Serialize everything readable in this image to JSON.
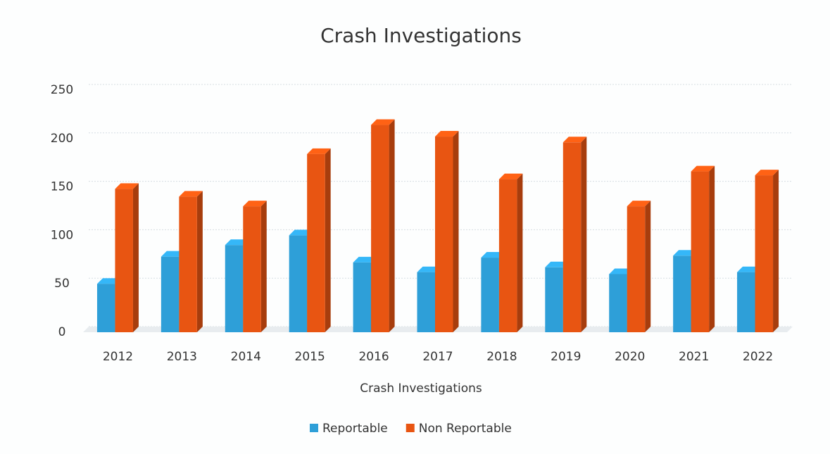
{
  "chart_data": {
    "type": "bar3d",
    "title": "Crash Investigations",
    "x_label": "Crash Investigations",
    "categories": [
      "2012",
      "2013",
      "2014",
      "2015",
      "2016",
      "2017",
      "2018",
      "2019",
      "2020",
      "2021",
      "2022"
    ],
    "series": [
      {
        "name": "Reportable",
        "color": "#2e9fd8",
        "values": [
          50,
          78,
          90,
          100,
          72,
          62,
          77,
          67,
          60,
          79,
          62
        ]
      },
      {
        "name": "Non Reportable",
        "color": "#e85512",
        "values": [
          148,
          140,
          130,
          184,
          214,
          202,
          158,
          196,
          130,
          166,
          162
        ]
      }
    ],
    "ylim": [
      0,
      250
    ],
    "yticks": [
      0,
      50,
      100,
      150,
      200,
      250
    ],
    "grid": true,
    "legend": "bottom"
  }
}
